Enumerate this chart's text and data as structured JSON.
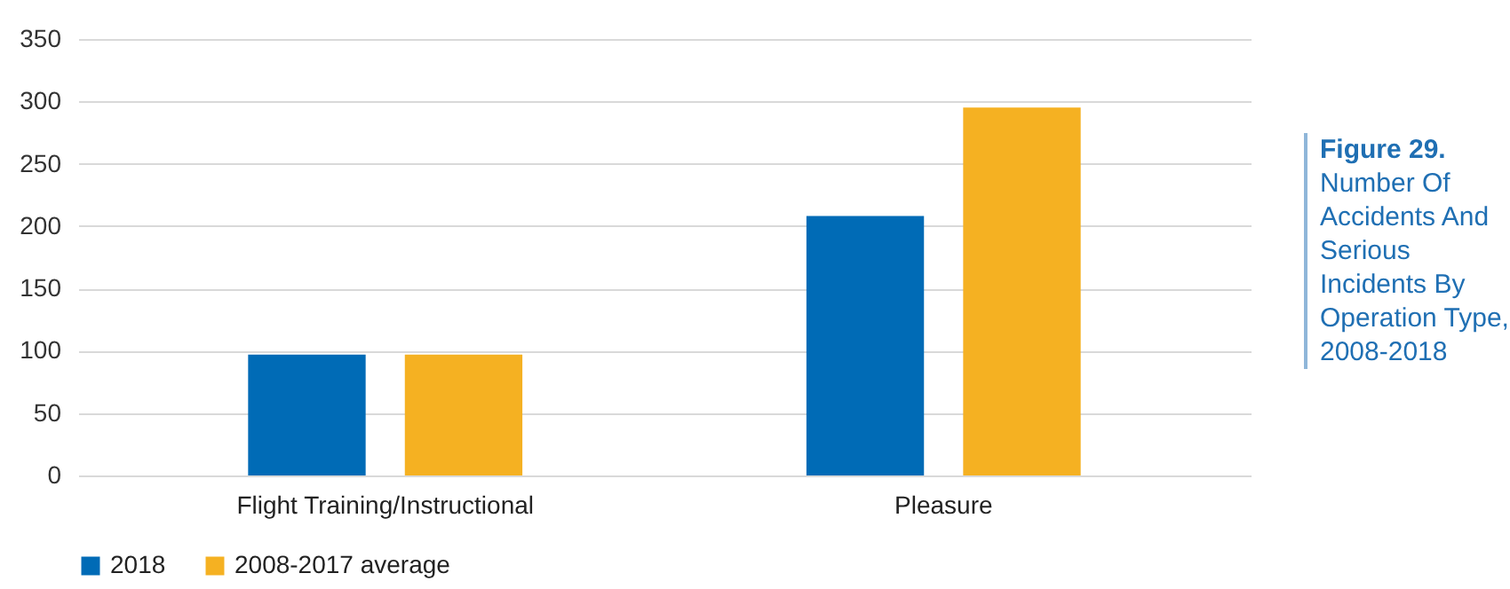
{
  "chart_data": {
    "type": "bar",
    "title": "Figure 29.",
    "subtitle": "Number Of Accidents And Serious Incidents By Operation Type, 2008-2018",
    "categories": [
      "Flight Training/Instructional",
      "Pleasure"
    ],
    "series": [
      {
        "name": "2018",
        "color": "#006bb6",
        "values": [
          97,
          208
        ]
      },
      {
        "name": "2008-2017 average",
        "color": "#f5b122",
        "values": [
          97,
          295
        ]
      }
    ],
    "ylim": [
      0,
      350
    ],
    "yticks": [
      0,
      50,
      100,
      150,
      200,
      250,
      300,
      350
    ],
    "grid": "y",
    "legend": "bottom"
  }
}
